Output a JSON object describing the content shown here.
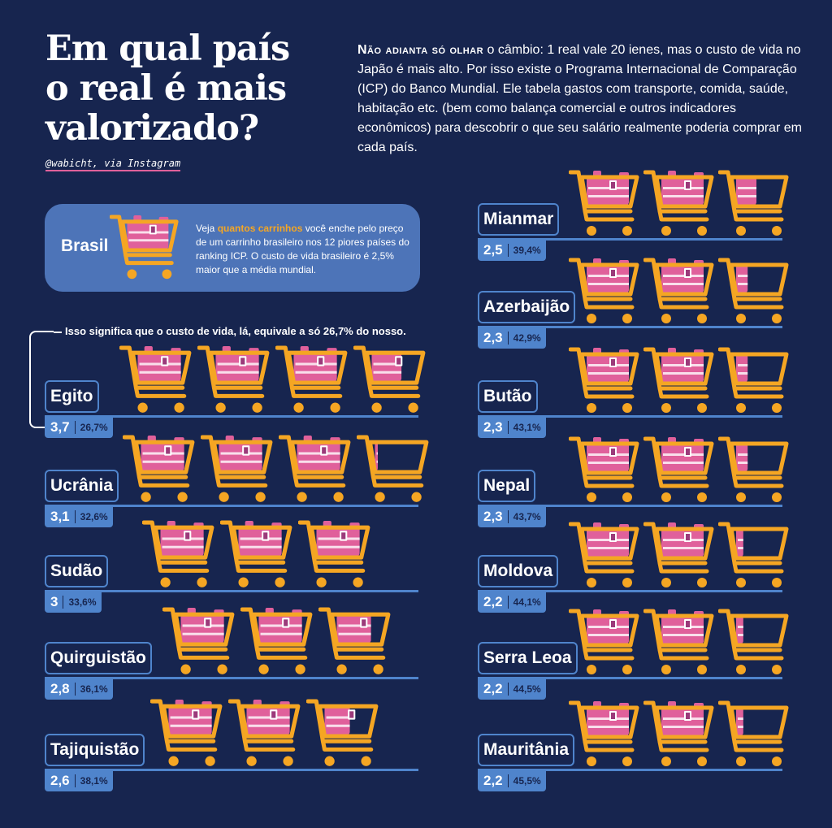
{
  "title": "Em qual país o real é mais valorizado?",
  "credit": "@wabicht, via Instagram",
  "intro": {
    "lead": "Não adianta só olhar",
    "text": " o câmbio: 1 real vale 20 ienes, mas o custo de vida no Japão é mais alto. Por isso existe o Programa Internacional de Comparação (ICP) do Banco Mundial. Ele tabela gastos com transporte, comida, saúde, habitação etc. (bem como balança comercial e outros indicadores econômicos) para descobrir  o que seu salário realmente poderia comprar em cada país."
  },
  "brasil": {
    "label": "Brasil",
    "text_a": "Veja ",
    "highlight": "quantos carrinhos",
    "text_b": " você enche pelo preço de um carrinho brasileiro nos 12 piores países do ranking ICP. O custo de vida brasileiro é 2,5% maior que a média mundial."
  },
  "note": "Isso significa que o custo de vida, lá, equivale a só 26,7% do nosso.",
  "colors": {
    "background": "#17254f",
    "accent_blue": "#4f84cc",
    "cart_yellow": "#f5a623",
    "goods_pink": "#e0609b"
  },
  "icon": "shopping-cart-icon",
  "countries_left": [
    {
      "name": "Egito",
      "value": "3,7",
      "pct": "26,7%",
      "carts": 3.7
    },
    {
      "name": "Ucrânia",
      "value": "3,1",
      "pct": "32,6%",
      "carts": 3.1
    },
    {
      "name": "Sudão",
      "value": "3",
      "pct": "33,6%",
      "carts": 3
    },
    {
      "name": "Quirguistão",
      "value": "2,8",
      "pct": "36,1%",
      "carts": 2.8
    },
    {
      "name": "Tajiquistão",
      "value": "2,6",
      "pct": "38,1%",
      "carts": 2.6
    }
  ],
  "countries_right": [
    {
      "name": "Mianmar",
      "value": "2,5",
      "pct": "39,4%",
      "carts": 2.5
    },
    {
      "name": "Azerbaijão",
      "value": "2,3",
      "pct": "42,9%",
      "carts": 2.3
    },
    {
      "name": "Butão",
      "value": "2,3",
      "pct": "43,1%",
      "carts": 2.3
    },
    {
      "name": "Nepal",
      "value": "2,3",
      "pct": "43,7%",
      "carts": 2.3
    },
    {
      "name": "Moldova",
      "value": "2,2",
      "pct": "44,1%",
      "carts": 2.2
    },
    {
      "name": "Serra Leoa",
      "value": "2,2",
      "pct": "44,5%",
      "carts": 2.2
    },
    {
      "name": "Mauritânia",
      "value": "2,2",
      "pct": "45,5%",
      "carts": 2.2
    }
  ]
}
